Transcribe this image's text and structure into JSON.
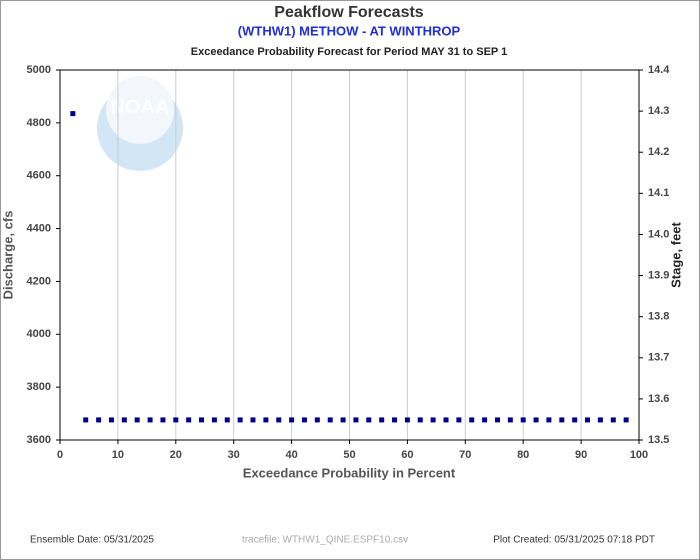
{
  "chart_data": {
    "type": "scatter",
    "title": "Peakflow Forecasts",
    "subtitle": "(WTHW1) METHOW - AT WINTHROP",
    "period_title": "Exceedance Probability Forecast for Period MAY 31 to SEP 1",
    "x_label": "Exceedance Probability in Percent",
    "y_label": "Discharge, cfs",
    "y2_label": "Stage, feet",
    "logo": "NOAA",
    "footer_left": "Ensemble Date: 05/31/2025",
    "footer_center": "tracefile: WTHW1_QINE.ESPF10.csv",
    "footer_right": "Plot Created: 05/31/2025 07:18 PDT",
    "color": "#00008b",
    "grid": true,
    "x": [
      2.22,
      4.44,
      6.67,
      8.89,
      11.11,
      13.33,
      15.56,
      17.78,
      20,
      22.22,
      24.44,
      26.67,
      28.89,
      31.11,
      33.33,
      35.56,
      37.78,
      40,
      42.22,
      44.44,
      46.67,
      48.89,
      51.11,
      53.33,
      55.56,
      57.78,
      60,
      62.22,
      64.44,
      66.67,
      68.89,
      71.11,
      73.33,
      75.56,
      77.78,
      80,
      82.22,
      84.44,
      86.67,
      88.89,
      91.11,
      93.33,
      95.56,
      97.78
    ],
    "values": [
      4835,
      3676,
      3676,
      3676,
      3676,
      3676,
      3676,
      3676,
      3676,
      3676,
      3676,
      3676,
      3676,
      3676,
      3676,
      3676,
      3676,
      3676,
      3676,
      3676,
      3676,
      3676,
      3676,
      3676,
      3676,
      3676,
      3676,
      3676,
      3676,
      3676,
      3676,
      3676,
      3676,
      3676,
      3676,
      3676,
      3676,
      3676,
      3676,
      3676,
      3676,
      3676,
      3676,
      3676
    ],
    "xlim": [
      0,
      100
    ],
    "xticks": [
      0,
      10,
      20,
      30,
      40,
      50,
      60,
      70,
      80,
      90,
      100
    ],
    "ylim": [
      3600,
      5000
    ],
    "yticks": [
      3600,
      3800,
      4000,
      4200,
      4400,
      4600,
      4800,
      5000
    ],
    "y2lim": [
      13.5,
      14.4
    ],
    "y2ticks": [
      13.5,
      13.6,
      13.7,
      13.8,
      13.9,
      {
        "value": 14,
        "label": "14.0"
      },
      14.1,
      14.2,
      14.3,
      14.4
    ]
  }
}
